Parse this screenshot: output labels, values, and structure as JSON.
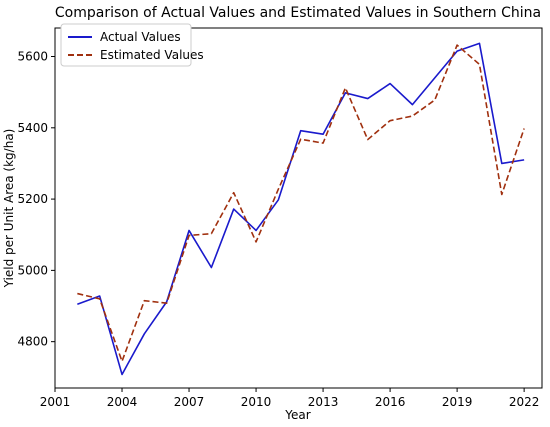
{
  "chart_data": {
    "type": "line",
    "title": "Comparison of Actual Values and Estimated Values in Southern China",
    "xlabel": "Year",
    "ylabel": "Yield per Unit Area (kg/ha)",
    "xlim": [
      2001,
      2022.8
    ],
    "ylim": [
      4670,
      5680
    ],
    "xticks": [
      2001,
      2004,
      2007,
      2010,
      2013,
      2016,
      2019,
      2022
    ],
    "yticks": [
      4800,
      5000,
      5200,
      5400,
      5600
    ],
    "x": [
      2002,
      2003,
      2004,
      2005,
      2006,
      2007,
      2008,
      2009,
      2010,
      2011,
      2012,
      2013,
      2014,
      2015,
      2016,
      2017,
      2018,
      2019,
      2020,
      2021,
      2022
    ],
    "series": [
      {
        "name": "Actual Values",
        "color": "#1a1acc",
        "style": "solid",
        "values": [
          4905,
          4928,
          4708,
          4822,
          4912,
          5112,
          5008,
          5172,
          5112,
          5198,
          5392,
          5382,
          5498,
          5482,
          5524,
          5465,
          5540,
          5615,
          5637,
          5300,
          5310
        ]
      },
      {
        "name": "Estimated Values",
        "color": "#a0300f",
        "style": "dashed",
        "values": [
          4935,
          4920,
          4745,
          4915,
          4908,
          5098,
          5103,
          5218,
          5080,
          5228,
          5368,
          5357,
          5512,
          5367,
          5420,
          5433,
          5478,
          5632,
          5578,
          5213,
          5398
        ]
      }
    ],
    "grid": false,
    "legend_position": "top-left"
  }
}
